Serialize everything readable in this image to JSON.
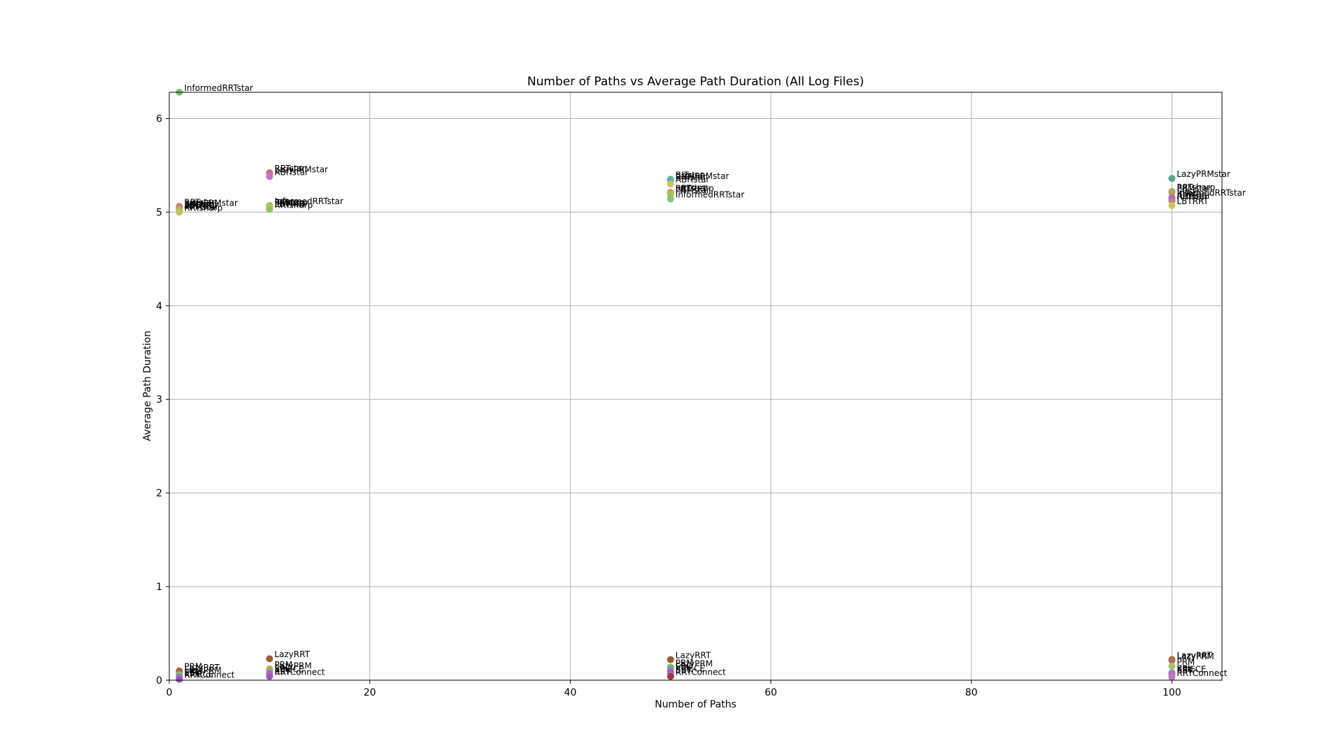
{
  "chart_data": {
    "type": "scatter",
    "title": "Number of Paths vs Average Path Duration (All Log Files)",
    "xlabel": "Number of Paths",
    "ylabel": "Average Path Duration",
    "xlim": [
      0,
      105
    ],
    "ylim": [
      0,
      6.28
    ],
    "xticks": [
      0,
      20,
      40,
      60,
      80,
      100
    ],
    "yticks": [
      0,
      1,
      2,
      3,
      4,
      5,
      6
    ],
    "grid": true,
    "legend": "none",
    "points": [
      {
        "x": 1,
        "y": 6.28,
        "label": "InformedRRTstar",
        "color": "#7cc26a"
      },
      {
        "x": 1,
        "y": 5.06,
        "label": "RRTstar",
        "color": "#b5707b"
      },
      {
        "x": 1,
        "y": 5.05,
        "label": "LazyPRMstar",
        "color": "#d86fb7"
      },
      {
        "x": 1,
        "y": 5.04,
        "label": "BITstar",
        "color": "#a7a84d"
      },
      {
        "x": 1,
        "y": 5.03,
        "label": "ABITstar",
        "color": "#c88f5b"
      },
      {
        "x": 1,
        "y": 5.02,
        "label": "LBTRRT",
        "color": "#b9c24f"
      },
      {
        "x": 1,
        "y": 5.01,
        "label": "PRMstar",
        "color": "#96c25c"
      },
      {
        "x": 1,
        "y": 5.0,
        "label": "RRTsharp",
        "color": "#c2c25a"
      },
      {
        "x": 1,
        "y": 0.1,
        "label": "PRM",
        "color": "#c45c5c"
      },
      {
        "x": 1,
        "y": 0.09,
        "label": "LazyRRT",
        "color": "#9a6b3b"
      },
      {
        "x": 1,
        "y": 0.06,
        "label": "LazyPRM",
        "color": "#8bbf5a"
      },
      {
        "x": 1,
        "y": 0.04,
        "label": "SBL",
        "color": "#6aa8c2"
      },
      {
        "x": 1,
        "y": 0.03,
        "label": "EST",
        "color": "#8b66c2"
      },
      {
        "x": 1,
        "y": 0.02,
        "label": "KPIECE",
        "color": "#c27ab0"
      },
      {
        "x": 1,
        "y": 0.01,
        "label": "RRTConnect",
        "color": "#9b59b6"
      },
      {
        "x": 10,
        "y": 5.42,
        "label": "RRTstar",
        "color": "#b3705c"
      },
      {
        "x": 10,
        "y": 5.41,
        "label": "LazyPRMstar",
        "color": "#c76f8f"
      },
      {
        "x": 10,
        "y": 5.38,
        "label": "ABITstar",
        "color": "#d46fcf"
      },
      {
        "x": 10,
        "y": 5.07,
        "label": "InformedRRTstar",
        "color": "#9bc25a"
      },
      {
        "x": 10,
        "y": 5.06,
        "label": "BITstar",
        "color": "#a6c26a"
      },
      {
        "x": 10,
        "y": 5.05,
        "label": "PRMstar",
        "color": "#b6c24f"
      },
      {
        "x": 10,
        "y": 5.04,
        "label": "LBTRRT",
        "color": "#c7c25a"
      },
      {
        "x": 10,
        "y": 5.03,
        "label": "RRTsharp",
        "color": "#8cc26a"
      },
      {
        "x": 10,
        "y": 0.23,
        "label": "LazyRRT",
        "color": "#9a5f2e"
      },
      {
        "x": 10,
        "y": 0.12,
        "label": "PRM",
        "color": "#c2c25a"
      },
      {
        "x": 10,
        "y": 0.11,
        "label": "LazyPRM",
        "color": "#b3a95c"
      },
      {
        "x": 10,
        "y": 0.08,
        "label": "SBL",
        "color": "#6fb0c2"
      },
      {
        "x": 10,
        "y": 0.07,
        "label": "KPIECE",
        "color": "#9d6fc2"
      },
      {
        "x": 10,
        "y": 0.05,
        "label": "EST",
        "color": "#c26fa0"
      },
      {
        "x": 10,
        "y": 0.04,
        "label": "RRTConnect",
        "color": "#9b59b6"
      },
      {
        "x": 50,
        "y": 5.35,
        "label": "BITstar",
        "color": "#5aa88a"
      },
      {
        "x": 50,
        "y": 5.34,
        "label": "LazyPRMstar",
        "color": "#6fc2a6"
      },
      {
        "x": 50,
        "y": 5.33,
        "label": "RRTstar",
        "color": "#4fb3c2"
      },
      {
        "x": 50,
        "y": 5.3,
        "label": "ABITstar",
        "color": "#d2c25a"
      },
      {
        "x": 50,
        "y": 5.21,
        "label": "RRTsharp",
        "color": "#b08a4f"
      },
      {
        "x": 50,
        "y": 5.2,
        "label": "LBTRRT",
        "color": "#c2b05a"
      },
      {
        "x": 50,
        "y": 5.19,
        "label": "PRMstar",
        "color": "#a8c25a"
      },
      {
        "x": 50,
        "y": 5.14,
        "label": "InformedRRTstar",
        "color": "#8cc27a"
      },
      {
        "x": 50,
        "y": 0.22,
        "label": "LazyRRT",
        "color": "#9a5f2e"
      },
      {
        "x": 50,
        "y": 0.14,
        "label": "PRM",
        "color": "#8bc27a"
      },
      {
        "x": 50,
        "y": 0.13,
        "label": "LazyPRM",
        "color": "#6fb07a"
      },
      {
        "x": 50,
        "y": 0.1,
        "label": "SBL",
        "color": "#b56fc2"
      },
      {
        "x": 50,
        "y": 0.08,
        "label": "KPIECE",
        "color": "#8f5fc2"
      },
      {
        "x": 50,
        "y": 0.06,
        "label": "EST",
        "color": "#a66fc2"
      },
      {
        "x": 50,
        "y": 0.04,
        "label": "RRTConnect",
        "color": "#9b3b3b"
      },
      {
        "x": 100,
        "y": 5.36,
        "label": "LazyPRMstar",
        "color": "#5aa88a"
      },
      {
        "x": 100,
        "y": 5.22,
        "label": "RRTsharp",
        "color": "#a8a060"
      },
      {
        "x": 100,
        "y": 5.21,
        "label": "PRMstar",
        "color": "#b3a95c"
      },
      {
        "x": 100,
        "y": 5.16,
        "label": "InformedRRTstar",
        "color": "#c2708f"
      },
      {
        "x": 100,
        "y": 5.15,
        "label": "BITstar",
        "color": "#b56fc2"
      },
      {
        "x": 100,
        "y": 5.13,
        "label": "ABITstar",
        "color": "#8f6fc2"
      },
      {
        "x": 100,
        "y": 5.12,
        "label": "RRTstar",
        "color": "#c27a8f"
      },
      {
        "x": 100,
        "y": 5.07,
        "label": "LBTRRT",
        "color": "#d2c25a"
      },
      {
        "x": 100,
        "y": 0.22,
        "label": "LazyRRT",
        "color": "#9a5f2e"
      },
      {
        "x": 100,
        "y": 0.21,
        "label": "LazyPRM",
        "color": "#b3705c"
      },
      {
        "x": 100,
        "y": 0.15,
        "label": "PRM",
        "color": "#a6c26a"
      },
      {
        "x": 100,
        "y": 0.08,
        "label": "SBL",
        "color": "#6fb0c2"
      },
      {
        "x": 100,
        "y": 0.07,
        "label": "KPIECE",
        "color": "#9d6fc2"
      },
      {
        "x": 100,
        "y": 0.06,
        "label": "EST",
        "color": "#b56fc2"
      },
      {
        "x": 100,
        "y": 0.03,
        "label": "RRTConnect",
        "color": "#c27ab0"
      }
    ]
  }
}
